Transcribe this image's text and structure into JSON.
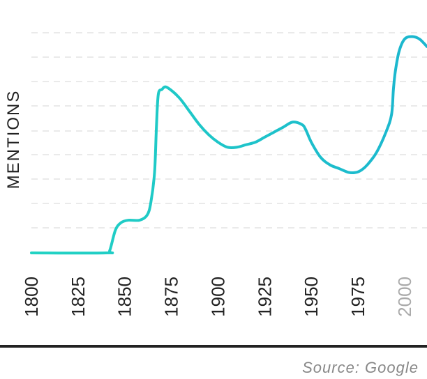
{
  "chart_data": {
    "type": "line",
    "ylabel": "MENTIONS",
    "xlim": [
      1800,
      2012
    ],
    "ylim": [
      0,
      9.5
    ],
    "x_ticks": [
      "1800",
      "1825",
      "1850",
      "1875",
      "1900",
      "1925",
      "1950",
      "1975",
      "2000"
    ],
    "highlighted_tick": "2000",
    "grid": true,
    "gradient_colors": [
      "#21d3c3",
      "#1bb6cf"
    ],
    "series": [
      {
        "x": [
          1800,
          1840,
          1842,
          1845,
          1848,
          1852,
          1858,
          1862,
          1864,
          1866,
          1867,
          1868,
          1870,
          1872,
          1876,
          1880,
          1885,
          1890,
          1895,
          1900,
          1905,
          1910,
          1915,
          1920,
          1925,
          1930,
          1935,
          1940,
          1945,
          1947,
          1950,
          1955,
          1960,
          1965,
          1970,
          1974,
          1977,
          1980,
          1985,
          1990,
          1993,
          1994,
          1995,
          1997,
          2000,
          2004,
          2008,
          2012
        ],
        "values": [
          0,
          0,
          0.1,
          0.9,
          1.2,
          1.3,
          1.3,
          1.5,
          2.0,
          3.2,
          5.0,
          6.3,
          6.5,
          6.6,
          6.4,
          6.1,
          5.6,
          5.1,
          4.7,
          4.4,
          4.2,
          4.2,
          4.3,
          4.4,
          4.6,
          4.8,
          5.0,
          5.2,
          5.1,
          4.9,
          4.4,
          3.8,
          3.5,
          3.35,
          3.2,
          3.2,
          3.3,
          3.5,
          4.0,
          4.8,
          5.5,
          6.5,
          7.2,
          8.0,
          8.5,
          8.6,
          8.5,
          8.2
        ]
      }
    ]
  },
  "source": "Source: Google"
}
